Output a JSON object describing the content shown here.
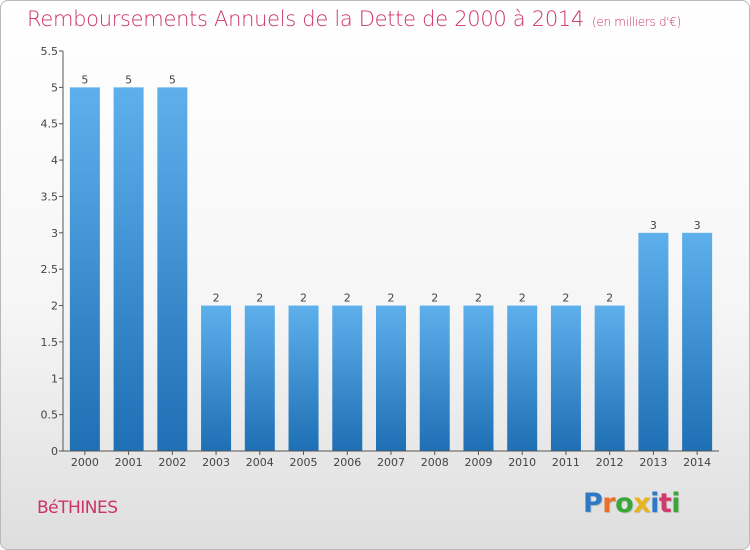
{
  "title": "Remboursements Annuels de la Dette de 2000 à 2014",
  "unit": "(en milliers d'€)",
  "city": "BéTHINES",
  "logo": {
    "text": "Proxiti",
    "letter_colors": [
      "#2f78c4",
      "#e8702a",
      "#3aa635",
      "#e8b41c",
      "#2f78c4",
      "#d13a6a",
      "#3aa635"
    ]
  },
  "colors": {
    "title": "#cc3366",
    "bar_light": "#5eb0ec",
    "bar_dark": "#1e6fb4",
    "axis": "#555555"
  },
  "chart_data": {
    "type": "bar",
    "title": "Remboursements Annuels de la Dette de 2000 à 2014",
    "xlabel": "",
    "ylabel": "",
    "categories": [
      "2000",
      "2001",
      "2002",
      "2003",
      "2004",
      "2005",
      "2006",
      "2007",
      "2008",
      "2009",
      "2010",
      "2011",
      "2012",
      "2013",
      "2014"
    ],
    "values": [
      5,
      5,
      5,
      2,
      2,
      2,
      2,
      2,
      2,
      2,
      2,
      2,
      2,
      3,
      3
    ],
    "ylim": [
      0,
      5.5
    ],
    "yticks": [
      "0",
      "0.5",
      "1",
      "1.5",
      "2",
      "2.5",
      "3",
      "3.5",
      "4",
      "4.5",
      "5",
      "5.5"
    ],
    "grid": false,
    "data_labels": true
  }
}
